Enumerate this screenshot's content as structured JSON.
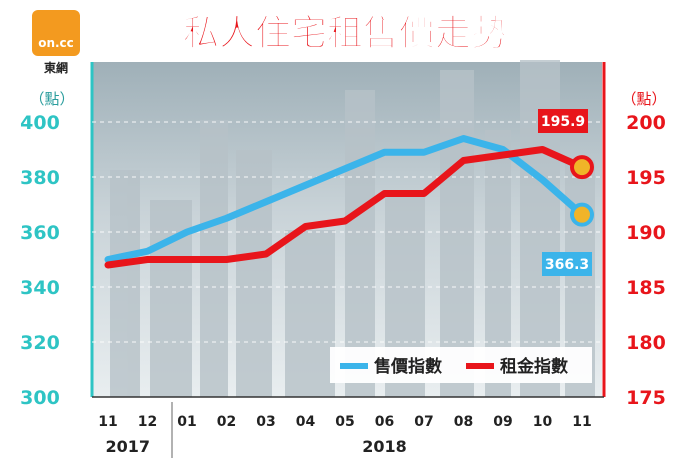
{
  "logo": {
    "line1": "on.cc",
    "line2": "東網"
  },
  "chart_data": {
    "type": "line",
    "title": "私人住宅租售價走勢",
    "categories": [
      "11",
      "12",
      "01",
      "02",
      "03",
      "04",
      "05",
      "06",
      "07",
      "08",
      "09",
      "10",
      "11"
    ],
    "year_labels": [
      {
        "label": "2017",
        "from": 0,
        "to": 1
      },
      {
        "label": "2018",
        "from": 2,
        "to": 12
      }
    ],
    "y_left": {
      "unit": "（點）",
      "min": 300,
      "max": 400,
      "ticks": [
        300,
        320,
        340,
        360,
        380,
        400
      ]
    },
    "y_right": {
      "unit": "（點）",
      "min": 175,
      "max": 200,
      "ticks": [
        175,
        180,
        185,
        190,
        195,
        200
      ]
    },
    "series": [
      {
        "name": "售價指數",
        "axis": "left",
        "color": "#3bb4ea",
        "values": [
          350,
          353,
          360,
          365,
          371,
          377,
          383,
          389,
          389,
          394,
          390,
          379,
          366.3
        ]
      },
      {
        "name": "租金指數",
        "axis": "right",
        "color": "#e8151b",
        "values": [
          187,
          187.5,
          187.5,
          187.5,
          188,
          190.5,
          191,
          193.5,
          193.5,
          196.5,
          197,
          197.5,
          195.9
        ]
      }
    ],
    "end_labels": {
      "sale": "366.3",
      "rent": "195.9"
    },
    "legend": {
      "position": "bottom-right"
    },
    "colors": {
      "left_axis": "#2ec4c4",
      "right_axis": "#e8151b",
      "plot_bg": "#cfd8dc"
    }
  }
}
